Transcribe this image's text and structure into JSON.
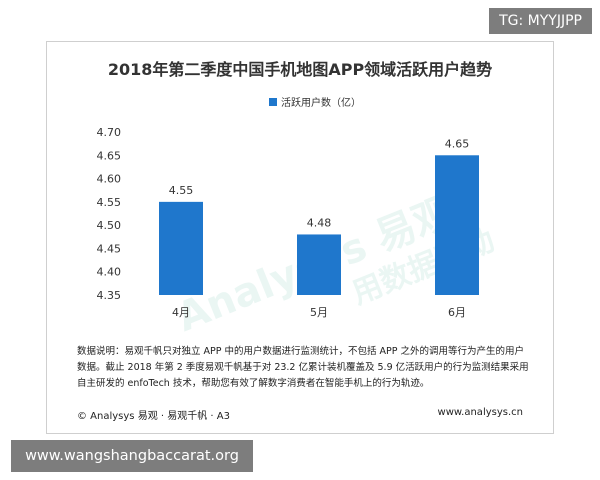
{
  "tag": "TG: MYYJJPP",
  "title": "2018年第二季度中国手机地图APP领域活跃用户趋势",
  "chart_data": {
    "type": "bar",
    "categories": [
      "4月",
      "5月",
      "6月"
    ],
    "series": [
      {
        "name": "活跃用户数（亿）",
        "values": [
          4.55,
          4.48,
          4.65
        ]
      }
    ],
    "data_labels": [
      "4.55",
      "4.48",
      "4.65"
    ],
    "yticks": [
      "4.70",
      "4.65",
      "4.60",
      "4.55",
      "4.50",
      "4.45",
      "4.40",
      "4.35"
    ],
    "ylim": [
      4.35,
      4.7
    ],
    "grid": false,
    "legend": "top-right",
    "color": "#1f77cc"
  },
  "note": {
    "line1": "数据说明：易观千帆只对独立 APP 中的用户数据进行监测统计，不包括 APP 之外的调用等行为产生的用户",
    "line2": "数据。截止 2018 年第 2 季度易观千帆基于对 23.2 亿累计装机覆盖及 5.9 亿活跃用户的行为监测结果采用",
    "line3": "自主研发的 enfoTech 技术，帮助您有效了解数字消费者在智能手机上的行为轨迹。"
  },
  "footer": {
    "left": "© Analysys 易观 · 易观千帆 · A3",
    "right": "www.analysys.cn"
  },
  "site": "www.wangshangbaccarat.org",
  "watermark": {
    "text1": "Analysys 易观",
    "text2": "用数据驱动"
  }
}
